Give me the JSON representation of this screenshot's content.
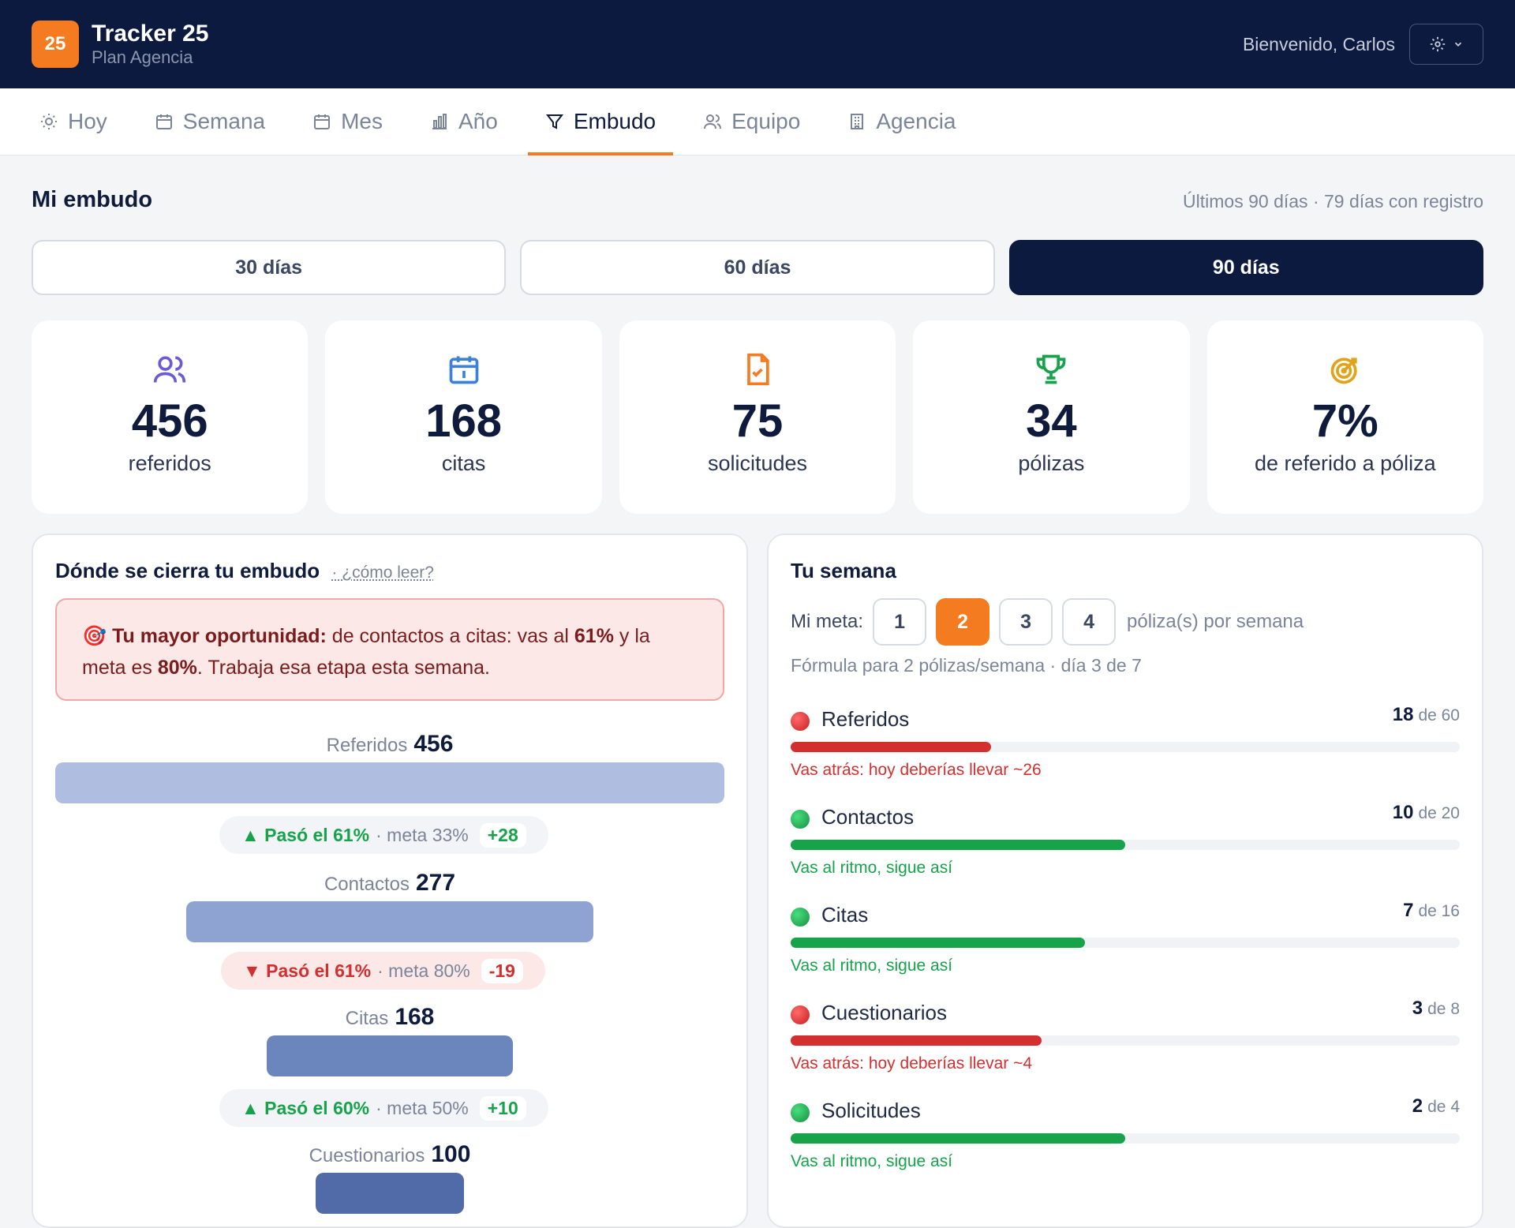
{
  "app": {
    "logo": "25",
    "title": "Tracker 25",
    "plan": "Plan Agencia",
    "welcome": "Bienvenido, Carlos"
  },
  "nav": {
    "tabs": [
      {
        "label": "Hoy",
        "icon": "sun-icon"
      },
      {
        "label": "Semana",
        "icon": "calendar-icon"
      },
      {
        "label": "Mes",
        "icon": "calendar-icon"
      },
      {
        "label": "Año",
        "icon": "bar-chart-icon"
      },
      {
        "label": "Embudo",
        "icon": "funnel-icon",
        "active": true
      },
      {
        "label": "Equipo",
        "icon": "users-icon"
      },
      {
        "label": "Agencia",
        "icon": "building-icon"
      }
    ]
  },
  "page": {
    "title": "Mi embudo",
    "subtitle": "Últimos 90 días · 79 días con registro"
  },
  "ranges": [
    "30 días",
    "60 días",
    "90 días"
  ],
  "selected_range": "90 días",
  "stats": [
    {
      "value": "456",
      "label": "referidos",
      "icon": "users-icon",
      "color": "#6b5bd6"
    },
    {
      "value": "168",
      "label": "citas",
      "icon": "calendar-icon",
      "color": "#3b82d6"
    },
    {
      "value": "75",
      "label": "solicitudes",
      "icon": "file-check-icon",
      "color": "#f47b20"
    },
    {
      "value": "34",
      "label": "pólizas",
      "icon": "trophy-icon",
      "color": "#16a34a"
    },
    {
      "value": "7%",
      "label": "de referido a póliza",
      "icon": "target-icon",
      "color": "#e0a31a"
    }
  ],
  "funnel": {
    "title": "Dónde se cierra tu embudo",
    "how": "· ¿cómo leer?",
    "alert": {
      "strong": "Tu mayor oportunidad:",
      "text1": " de contactos a citas: vas al ",
      "pct": "61%",
      "text2": " y la meta es ",
      "goal": "80%",
      "text3": ". Trabaja esa etapa esta semana."
    },
    "stages": [
      {
        "label": "Referidos",
        "value": "456",
        "color": "#aebde0"
      },
      {
        "label": "Contactos",
        "value": "277",
        "color": "#8fa3d2"
      },
      {
        "label": "Citas",
        "value": "168",
        "color": "#6b85bd"
      },
      {
        "label": "Cuestionarios",
        "value": "100",
        "color": "#506ba8"
      }
    ],
    "transitions": [
      {
        "dir": "up",
        "main": "▲ Pasó el 61%",
        "goal": "· meta 33%",
        "delta": "+28"
      },
      {
        "dir": "down",
        "main": "▼ Pasó el 61%",
        "goal": "· meta 80%",
        "delta": "-19"
      },
      {
        "dir": "up",
        "main": "▲ Pasó el 60%",
        "goal": "· meta 50%",
        "delta": "+10"
      }
    ]
  },
  "week": {
    "title": "Tu semana",
    "goal_label": "Mi meta:",
    "goals": [
      "1",
      "2",
      "3",
      "4"
    ],
    "selected_goal": "2",
    "goal_suffix": "póliza(s) por semana",
    "formula": "Fórmula para 2 pólizas/semana · día 3 de 7",
    "rows": [
      {
        "name": "Referidos",
        "done": "18",
        "target": "de 60",
        "progress": 0.3,
        "status": "behind",
        "message": "Vas atrás: hoy deberías llevar ~26"
      },
      {
        "name": "Contactos",
        "done": "10",
        "target": "de 20",
        "progress": 0.5,
        "status": "ok",
        "message": "Vas al ritmo, sigue así"
      },
      {
        "name": "Citas",
        "done": "7",
        "target": "de 16",
        "progress": 0.44,
        "status": "ok",
        "message": "Vas al ritmo, sigue así"
      },
      {
        "name": "Cuestionarios",
        "done": "3",
        "target": "de 8",
        "progress": 0.375,
        "status": "behind",
        "message": "Vas atrás: hoy deberías llevar ~4"
      },
      {
        "name": "Solicitudes",
        "done": "2",
        "target": "de 4",
        "progress": 0.5,
        "status": "ok",
        "message": "Vas al ritmo, sigue así"
      }
    ]
  },
  "colors": {
    "navy": "#0c1a3f",
    "accent": "#f47b20",
    "ok": "#16a34a",
    "behind": "#d32f2f"
  }
}
